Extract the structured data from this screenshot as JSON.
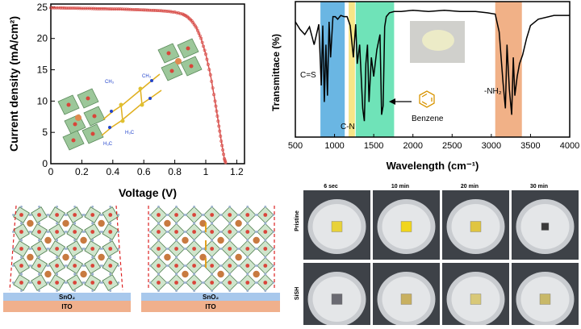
{
  "jv_chart": {
    "type": "line",
    "xlabel": "Voltage (V)",
    "ylabel": "Current density (mA/cm²)",
    "xlim": [
      0,
      1.25
    ],
    "ylim": [
      0,
      25.5
    ],
    "x_ticks": [
      "0",
      "0.2",
      "0.4",
      "0.6",
      "0.8",
      "1",
      "1.2"
    ],
    "y_ticks": [
      "0",
      "5",
      "10",
      "15",
      "20",
      "25"
    ],
    "color": "#d9534f",
    "x": [
      0,
      0.05,
      0.1,
      0.15,
      0.2,
      0.25,
      0.3,
      0.35,
      0.4,
      0.45,
      0.5,
      0.55,
      0.6,
      0.65,
      0.7,
      0.75,
      0.8,
      0.85,
      0.88,
      0.91,
      0.94,
      0.97,
      1.0,
      1.03,
      1.06,
      1.08,
      1.1,
      1.12,
      1.13
    ],
    "y": [
      24.9,
      24.9,
      24.85,
      24.85,
      24.8,
      24.8,
      24.75,
      24.75,
      24.7,
      24.7,
      24.65,
      24.6,
      24.55,
      24.5,
      24.45,
      24.35,
      24.2,
      23.9,
      23.5,
      22.8,
      21.7,
      20.0,
      17.5,
      14.2,
      10.0,
      6.8,
      3.6,
      0.8,
      0
    ]
  },
  "ir_chart": {
    "type": "line",
    "xlabel": "Wavelength (cm⁻¹)",
    "ylabel": "Transmittace (%)",
    "xlim": [
      500,
      4000
    ],
    "x_ticks": [
      "500",
      "1000",
      "1500",
      "2000",
      "2500",
      "3000",
      "3500",
      "4000"
    ],
    "bands": [
      {
        "label": "C=S",
        "from": 820,
        "to": 1130,
        "color": "#5aaee0"
      },
      {
        "label": "C-N",
        "from": 1180,
        "to": 1260,
        "color": "#f5e27a"
      },
      {
        "label": "Benzene",
        "from": 1270,
        "to": 1760,
        "color": "#5fe0b0"
      },
      {
        "label": "-NH₂",
        "from": 3050,
        "to": 3390,
        "color": "#f0a87a"
      }
    ],
    "x": [
      500,
      560,
      620,
      680,
      740,
      800,
      830,
      850,
      870,
      890,
      910,
      930,
      950,
      980,
      1010,
      1040,
      1080,
      1120,
      1160,
      1200,
      1240,
      1270,
      1290,
      1320,
      1340,
      1360,
      1380,
      1400,
      1420,
      1440,
      1470,
      1500,
      1540,
      1580,
      1600,
      1620,
      1640,
      1660,
      1700,
      1760,
      1850,
      2000,
      2200,
      2400,
      2600,
      2800,
      2950,
      3050,
      3100,
      3150,
      3180,
      3200,
      3230,
      3260,
      3280,
      3300,
      3330,
      3360,
      3400,
      3450,
      3500,
      3600,
      3800,
      4000
    ],
    "y": [
      88,
      82,
      78,
      84,
      70,
      86,
      38,
      85,
      25,
      70,
      30,
      88,
      60,
      92,
      92,
      90,
      93,
      92,
      92,
      85,
      60,
      86,
      55,
      70,
      45,
      20,
      10,
      55,
      70,
      25,
      60,
      45,
      66,
      78,
      15,
      22,
      84,
      92,
      95,
      96,
      96,
      97,
      96,
      97,
      96,
      96,
      95,
      94,
      80,
      40,
      20,
      70,
      35,
      15,
      60,
      30,
      45,
      55,
      62,
      75,
      85,
      90,
      93,
      93
    ],
    "label_benzene": "Benzene"
  },
  "stability": {
    "times": [
      "6 sec",
      "10 min",
      "20 min",
      "30 min"
    ],
    "rows": [
      "Pristine",
      "SiSH"
    ]
  },
  "layers": {
    "etl": "SnO₂",
    "substrate": "ITO"
  },
  "molecule_labels": [
    "CH₃",
    "H₃C",
    "CH₃",
    "H₃C"
  ]
}
